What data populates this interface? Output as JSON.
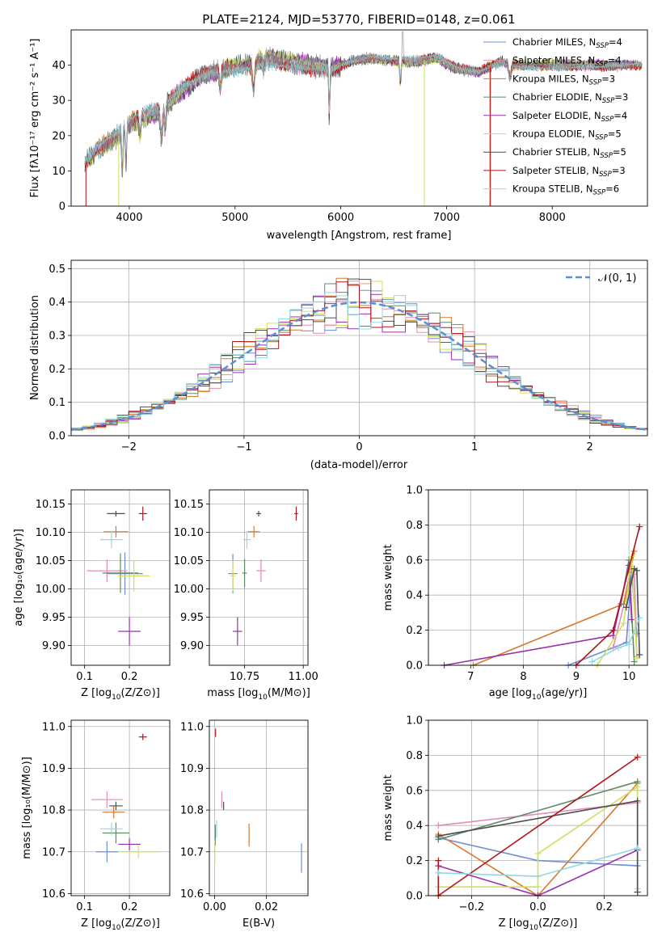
{
  "figure_title": "PLATE=2124, MJD=53770, FIBERID=0148, z=0.061",
  "colors": {
    "chabrier_miles": "#6b8fd6",
    "salpeter_miles": "#e88ab9",
    "kroupa_miles": "#d8772a",
    "chabrier_elodie": "#5f8a66",
    "salpeter_elodie": "#9b2fae",
    "kroupa_elodie": "#cfe05a",
    "chabrier_stelib": "#4d4d4d",
    "salpeter_stelib": "#b0151b",
    "kroupa_stelib": "#8fd9e3",
    "gaussian": "#5b8ed6",
    "data": "#999999"
  },
  "chart_data": [
    {
      "type": "line",
      "title": "PLATE=2124, MJD=53770, FIBERID=0148, z=0.061",
      "xlabel": "wavelength [Angstrom, rest frame]",
      "ylabel": "Flux [fλ10⁻¹⁷ erg cm⁻² s⁻¹ A⁻¹]",
      "xlim": [
        3450,
        8900
      ],
      "ylim": [
        0,
        50
      ],
      "xticks": [
        "4000",
        "5000",
        "6000",
        "7000",
        "8000"
      ],
      "yticks": [
        "0",
        "10",
        "20",
        "30",
        "40"
      ],
      "legend": "upper right",
      "continuum": {
        "x": [
          3580,
          3700,
          3900,
          4000,
          4100,
          4300,
          4500,
          4700,
          4900,
          5100,
          5300,
          5500,
          5700,
          5900,
          6100,
          6300,
          6500,
          6700,
          6900,
          7100,
          7300,
          7500,
          7700,
          7900,
          8100,
          8300,
          8500,
          8700,
          8850
        ],
        "y": [
          12,
          16,
          20,
          23,
          25,
          27,
          33,
          37,
          39,
          40,
          42,
          41,
          40,
          39,
          41,
          42,
          41,
          41,
          42,
          39,
          38,
          41,
          40,
          40,
          40,
          40,
          40,
          40,
          40
        ]
      },
      "series": [
        {
          "name": "Chabrier MILES, N_SSP=4",
          "label_main": "Chabrier MILES, N",
          "label_sub": "SSP",
          "label_end": "=4",
          "color_key": "chabrier_miles"
        },
        {
          "name": "Salpeter MILES, N_SSP=4",
          "label_main": "Salpeter MILES, N",
          "label_sub": "SSP",
          "label_end": "=4",
          "color_key": "salpeter_miles"
        },
        {
          "name": "Kroupa MILES, N_SSP=3",
          "label_main": "Kroupa MILES, N",
          "label_sub": "SSP",
          "label_end": "=3",
          "color_key": "kroupa_miles"
        },
        {
          "name": "Chabrier ELODIE, N_SSP=3",
          "label_main": "Chabrier ELODIE, N",
          "label_sub": "SSP",
          "label_end": "=3",
          "color_key": "chabrier_elodie"
        },
        {
          "name": "Salpeter ELODIE, N_SSP=4",
          "label_main": "Salpeter ELODIE, N",
          "label_sub": "SSP",
          "label_end": "=4",
          "color_key": "salpeter_elodie"
        },
        {
          "name": "Kroupa ELODIE, N_SSP=5",
          "label_main": "Kroupa ELODIE, N",
          "label_sub": "SSP",
          "label_end": "=5",
          "color_key": "kroupa_elodie"
        },
        {
          "name": "Chabrier STELIB, N_SSP=5",
          "label_main": "Chabrier STELIB, N",
          "label_sub": "SSP",
          "label_end": "=5",
          "color_key": "chabrier_stelib"
        },
        {
          "name": "Salpeter STELIB, N_SSP=3",
          "label_main": "Salpeter STELIB, N",
          "label_sub": "SSP",
          "label_end": "=3",
          "color_key": "salpeter_stelib"
        },
        {
          "name": "Kroupa STELIB, N_SSP=6",
          "label_main": "Kroupa STELIB, N",
          "label_sub": "SSP",
          "label_end": "=6",
          "color_key": "kroupa_stelib"
        }
      ]
    },
    {
      "type": "histogram",
      "xlabel": "(data-model)/error",
      "ylabel": "Normed distribution",
      "xlim": [
        -2.5,
        2.5
      ],
      "ylim": [
        0,
        0.525
      ],
      "xticks": [
        "−2",
        "−1",
        "0",
        "1",
        "2"
      ],
      "yticks": [
        "0.0",
        "0.1",
        "0.2",
        "0.3",
        "0.4",
        "0.5"
      ],
      "grid": true,
      "legend": "upper right",
      "gaussian_label": "𝒩(0, 1)",
      "bin_width": 0.1
    },
    {
      "type": "scatter",
      "xlabel_main": "Z [log",
      "xlabel_sub": "10",
      "xlabel_end": "(Z/Z⊙)]",
      "ylabel": "age  [log₁₀(age/yr)]",
      "xlim": [
        0.07,
        0.29
      ],
      "ylim": [
        9.865,
        10.175
      ],
      "xticks": [
        "0.1",
        "0.2"
      ],
      "yticks": [
        "9.90",
        "9.95",
        "10.00",
        "10.05",
        "10.10",
        "10.15"
      ],
      "grid": true,
      "points": [
        {
          "c": "chabrier_miles",
          "x": 0.19,
          "y": 10.027,
          "xerr": 0.08,
          "yerr": 0.075
        },
        {
          "c": "salpeter_miles",
          "x": 0.15,
          "y": 10.032,
          "xerr": 0.09,
          "yerr": 0.04
        },
        {
          "c": "kroupa_miles",
          "x": 0.17,
          "y": 10.101,
          "xerr": 0.055,
          "yerr": 0.02
        },
        {
          "c": "chabrier_elodie",
          "x": 0.18,
          "y": 10.028,
          "xerr": 0.08,
          "yerr": 0.07
        },
        {
          "c": "salpeter_elodie",
          "x": 0.2,
          "y": 9.925,
          "xerr": 0.05,
          "yerr": 0.05
        },
        {
          "c": "kroupa_elodie",
          "x": 0.21,
          "y": 10.023,
          "xerr": 0.07,
          "yerr": 0.055
        },
        {
          "c": "chabrier_stelib",
          "x": 0.17,
          "y": 10.133,
          "xerr": 0.04,
          "yerr": 0.01
        },
        {
          "c": "salpeter_stelib",
          "x": 0.23,
          "y": 10.133,
          "xerr": 0.018,
          "yerr": 0.025
        },
        {
          "c": "kroupa_stelib",
          "x": 0.16,
          "y": 10.087,
          "xerr": 0.05,
          "yerr": 0.03
        }
      ]
    },
    {
      "type": "scatter",
      "xlabel_main": "mass [log",
      "xlabel_sub": "10",
      "xlabel_end": "(M/M⊙)]",
      "xlim": [
        10.6,
        11.02
      ],
      "ylim": [
        9.865,
        10.175
      ],
      "xticks": [
        "10.75",
        "11.00"
      ],
      "yticks": [
        "9.90",
        "9.95",
        "10.00",
        "10.05",
        "10.10",
        "10.15"
      ],
      "grid": true,
      "points": [
        {
          "c": "chabrier_miles",
          "x": 10.7,
          "y": 10.027,
          "xerr": 0.04,
          "yerr": 0.07
        },
        {
          "c": "salpeter_miles",
          "x": 10.82,
          "y": 10.032,
          "xerr": 0.04,
          "yerr": 0.04
        },
        {
          "c": "kroupa_miles",
          "x": 10.79,
          "y": 10.101,
          "xerr": 0.05,
          "yerr": 0.02
        },
        {
          "c": "chabrier_elodie",
          "x": 10.75,
          "y": 10.028,
          "xerr": 0.02,
          "yerr": 0.05
        },
        {
          "c": "salpeter_elodie",
          "x": 10.72,
          "y": 9.925,
          "xerr": 0.04,
          "yerr": 0.05
        },
        {
          "c": "kroupa_elodie",
          "x": 10.7,
          "y": 10.023,
          "xerr": 0.02,
          "yerr": 0.055
        },
        {
          "c": "chabrier_stelib",
          "x": 10.81,
          "y": 10.133,
          "xerr": 0.02,
          "yerr": 0.01
        },
        {
          "c": "salpeter_stelib",
          "x": 10.97,
          "y": 10.133,
          "xerr": 0.015,
          "yerr": 0.025
        },
        {
          "c": "kroupa_stelib",
          "x": 10.76,
          "y": 10.087,
          "xerr": 0.03,
          "yerr": 0.03
        }
      ]
    },
    {
      "type": "line",
      "xlabel_main": "age  [log",
      "xlabel_sub": "10",
      "xlabel_end": "(age/yr)]",
      "ylabel": "mass weight",
      "xlim": [
        6.2,
        10.35
      ],
      "ylim": [
        0,
        1
      ],
      "xticks": [
        "7",
        "8",
        "9",
        "10"
      ],
      "yticks": [
        "0.0",
        "0.2",
        "0.4",
        "0.6",
        "0.8",
        "1.0"
      ],
      "grid": true,
      "series": [
        {
          "c": "chabrier_miles",
          "x": [
            8.85,
            9.95,
            10.05,
            10.15
          ],
          "y": [
            0.0,
            0.13,
            0.53,
            0.18
          ]
        },
        {
          "c": "salpeter_miles",
          "x": [
            9.7,
            9.95,
            10.1,
            10.15
          ],
          "y": [
            0.1,
            0.4,
            0.52,
            0.05
          ]
        },
        {
          "c": "kroupa_miles",
          "x": [
            7.05,
            9.9,
            10.1
          ],
          "y": [
            0.0,
            0.35,
            0.65
          ]
        },
        {
          "c": "chabrier_elodie",
          "x": [
            9.85,
            10.0,
            10.1
          ],
          "y": [
            0.35,
            0.6,
            0.02
          ]
        },
        {
          "c": "salpeter_elodie",
          "x": [
            6.5,
            9.7,
            10.0,
            10.05
          ],
          "y": [
            0.0,
            0.17,
            0.57,
            0.26
          ]
        },
        {
          "c": "kroupa_elodie",
          "x": [
            9.4,
            9.9,
            10.05,
            10.15
          ],
          "y": [
            0.0,
            0.24,
            0.62,
            0.04
          ]
        },
        {
          "c": "chabrier_stelib",
          "x": [
            9.95,
            10.1,
            10.15,
            10.2
          ],
          "y": [
            0.33,
            0.55,
            0.54,
            0.06
          ]
        },
        {
          "c": "salpeter_stelib",
          "x": [
            9.0,
            9.7,
            10.2
          ],
          "y": [
            0.0,
            0.2,
            0.79
          ]
        },
        {
          "c": "kroupa_stelib",
          "x": [
            9.3,
            9.8,
            10.0,
            10.2
          ],
          "y": [
            0.02,
            0.1,
            0.12,
            0.27
          ]
        }
      ]
    },
    {
      "type": "scatter",
      "xlabel_main": "Z [log",
      "xlabel_sub": "10",
      "xlabel_end": "(Z/Z⊙)]",
      "ylabel": "mass [log₁₀(M/M⊙)]",
      "xlim": [
        0.07,
        0.29
      ],
      "ylim": [
        10.595,
        11.015
      ],
      "xticks": [
        "0.1",
        "0.2"
      ],
      "yticks": [
        "10.6",
        "10.7",
        "10.8",
        "10.9",
        "11.0"
      ],
      "grid": true,
      "points": [
        {
          "c": "chabrier_miles",
          "x": 0.15,
          "y": 10.7,
          "xerr": 0.05,
          "yerr": 0.05
        },
        {
          "c": "salpeter_miles",
          "x": 0.15,
          "y": 10.825,
          "xerr": 0.07,
          "yerr": 0.04
        },
        {
          "c": "kroupa_miles",
          "x": 0.165,
          "y": 10.795,
          "xerr": 0.05,
          "yerr": 0.03
        },
        {
          "c": "chabrier_elodie",
          "x": 0.17,
          "y": 10.745,
          "xerr": 0.06,
          "yerr": 0.05
        },
        {
          "c": "salpeter_elodie",
          "x": 0.2,
          "y": 10.718,
          "xerr": 0.05,
          "yerr": 0.03
        },
        {
          "c": "kroupa_elodie",
          "x": 0.22,
          "y": 10.7,
          "xerr": 0.09,
          "yerr": 0.03
        },
        {
          "c": "chabrier_stelib",
          "x": 0.17,
          "y": 10.81,
          "xerr": 0.03,
          "yerr": 0.02
        },
        {
          "c": "salpeter_stelib",
          "x": 0.23,
          "y": 10.975,
          "xerr": 0.018,
          "yerr": 0.015
        },
        {
          "c": "kroupa_stelib",
          "x": 0.16,
          "y": 10.755,
          "xerr": 0.05,
          "yerr": 0.03
        }
      ]
    },
    {
      "type": "scatter",
      "xlabel": "E(B-V)",
      "xlim": [
        -0.002,
        0.036
      ],
      "ylim": [
        10.595,
        11.015
      ],
      "xticks": [
        "0.00",
        "0.02"
      ],
      "yticks": [
        "10.6",
        "10.7",
        "10.8",
        "10.9",
        "11.0"
      ],
      "grid": true,
      "points": [
        {
          "c": "chabrier_miles",
          "x": 0.0335,
          "y": 10.685,
          "yerr": 0.07
        },
        {
          "c": "salpeter_miles",
          "x": 0.0028,
          "y": 10.825,
          "yerr": 0.04
        },
        {
          "c": "kroupa_miles",
          "x": 0.0133,
          "y": 10.74,
          "yerr": 0.055
        },
        {
          "c": "chabrier_elodie",
          "x": 0.0003,
          "y": 10.74,
          "yerr": 0.05
        },
        {
          "c": "kroupa_elodie",
          "x": 0.0001,
          "y": 10.7,
          "yerr": 0.06
        },
        {
          "c": "chabrier_stelib",
          "x": 0.0035,
          "y": 10.81,
          "yerr": 0.02
        },
        {
          "c": "salpeter_stelib",
          "x": 0.0004,
          "y": 10.985,
          "yerr": 0.02
        },
        {
          "c": "kroupa_stelib",
          "x": 0.0008,
          "y": 10.755,
          "yerr": 0.04
        }
      ]
    },
    {
      "type": "line",
      "xlabel_main": "Z [log",
      "xlabel_sub": "10",
      "xlabel_end": "(Z/Z⊙)]",
      "ylabel": "mass weight",
      "xlim": [
        -0.33,
        0.33
      ],
      "ylim": [
        0,
        1
      ],
      "xticks": [
        "−0.2",
        "0.0",
        "0.2"
      ],
      "yticks": [
        "0.0",
        "0.2",
        "0.4",
        "0.6",
        "0.8",
        "1.0"
      ],
      "grid": true,
      "series": [
        {
          "c": "chabrier_miles",
          "x": [
            -0.3,
            0.0,
            0.3
          ],
          "y": [
            0.33,
            0.2,
            0.17
          ]
        },
        {
          "c": "salpeter_miles",
          "x": [
            -0.3,
            0.3
          ],
          "y": [
            0.4,
            0.53
          ]
        },
        {
          "c": "kroupa_miles",
          "x": [
            -0.3,
            0.0,
            0.3
          ],
          "y": [
            0.35,
            0.0,
            0.64
          ]
        },
        {
          "c": "chabrier_elodie",
          "x": [
            -0.3,
            0.3,
            0.3
          ],
          "y": [
            0.32,
            0.65,
            0.02
          ]
        },
        {
          "c": "salpeter_elodie",
          "x": [
            -0.3,
            0.0,
            0.3
          ],
          "y": [
            0.17,
            0.0,
            0.26
          ]
        },
        {
          "c": "kroupa_elodie",
          "x": [
            -0.3,
            0.0,
            0.0,
            0.3,
            0.3
          ],
          "y": [
            0.05,
            0.05,
            0.24,
            0.62,
            0.04
          ]
        },
        {
          "c": "chabrier_stelib",
          "x": [
            -0.3,
            0.3,
            0.3
          ],
          "y": [
            0.34,
            0.54,
            0.02
          ]
        },
        {
          "c": "salpeter_stelib",
          "x": [
            -0.3,
            -0.3,
            0.3
          ],
          "y": [
            0.2,
            0.0,
            0.79
          ]
        },
        {
          "c": "kroupa_stelib",
          "x": [
            -0.3,
            0.0,
            0.3
          ],
          "y": [
            0.13,
            0.11,
            0.27
          ]
        }
      ]
    }
  ]
}
